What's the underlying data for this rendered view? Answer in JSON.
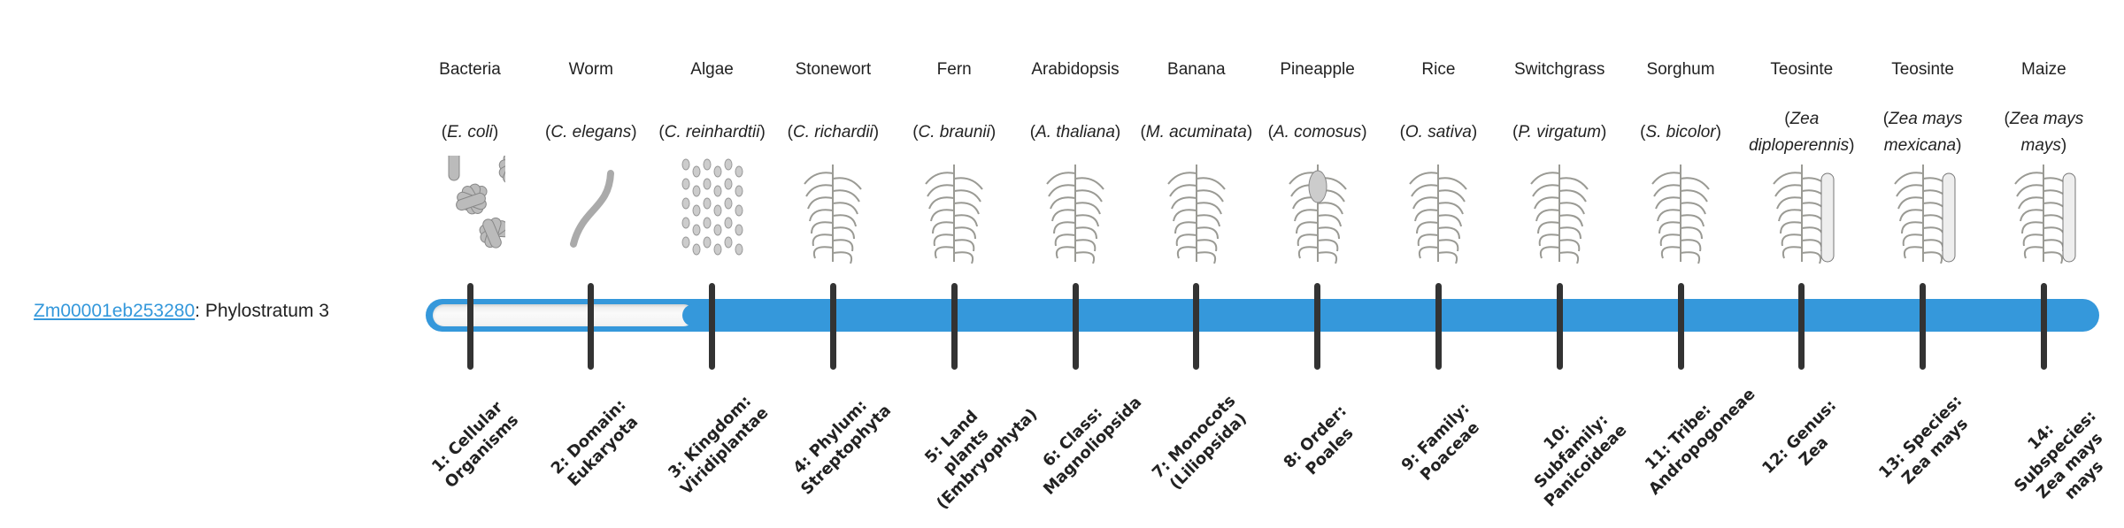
{
  "gene": {
    "id": "Zm00001eb253280",
    "suffix": ": Phylostratum 3",
    "phylostratum": 3
  },
  "colors": {
    "accent": "#3598db",
    "tick": "#333333"
  },
  "organisms": [
    {
      "common": "Bacteria",
      "species": "E. coli",
      "icon": "bacteria-illustration"
    },
    {
      "common": "Worm",
      "species": "C. elegans",
      "icon": "worm-illustration"
    },
    {
      "common": "Algae",
      "species": "C. reinhardtii",
      "icon": "algae-illustration"
    },
    {
      "common": "Stonewort",
      "species": "C. richardii",
      "icon": "stonewort-illustration"
    },
    {
      "common": "Fern",
      "species": "C. braunii",
      "icon": "fern-illustration"
    },
    {
      "common": "Arabidopsis",
      "species": "A. thaliana",
      "icon": "arabidopsis-illustration"
    },
    {
      "common": "Banana",
      "species": "M. acuminata",
      "icon": "banana-illustration"
    },
    {
      "common": "Pineapple",
      "species": "A. comosus",
      "icon": "pineapple-illustration"
    },
    {
      "common": "Rice",
      "species": "O. sativa",
      "icon": "rice-illustration"
    },
    {
      "common": "Switchgrass",
      "species": "P. virgatum",
      "icon": "switchgrass-illustration"
    },
    {
      "common": "Sorghum",
      "species": "S. bicolor",
      "icon": "sorghum-illustration"
    },
    {
      "common": "Teosinte",
      "species": "Zea diploperennis",
      "icon": "teosinte-illustration"
    },
    {
      "common": "Teosinte",
      "species": "Zea mays mexicana",
      "icon": "teosinte-illustration"
    },
    {
      "common": "Maize",
      "species": "Zea mays mays",
      "icon": "maize-illustration"
    }
  ],
  "strata": [
    "1: Cellular Organisms",
    "2: Domain: Eukaryota",
    "3: Kingdom: Viridiplantae",
    "4: Phylum: Streptophyta",
    "5: Land plants (Embryophyta)",
    "6: Class: Magnoliopsida",
    "7: Monocots (Liliopsida)",
    "8: Order: Poales",
    "9: Family: Poaceae",
    "10: Subfamily: Panicoideae",
    "11: Tribe: Andropogoneae",
    "12: Genus: Zea",
    "13: Species: Zea mays",
    "14: Subspecies: Zea mays mays"
  ]
}
